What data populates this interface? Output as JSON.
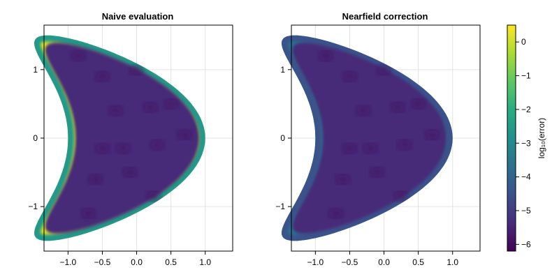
{
  "chart_data": {
    "type": "heatmap",
    "panels": [
      {
        "title": "Naive evaluation",
        "xlim": [
          -1.35,
          1.4
        ],
        "ylim": [
          -1.65,
          1.65
        ],
        "x_ticks": [
          -1.0,
          -0.5,
          0.0,
          0.5,
          1.0
        ],
        "x_tick_labels": [
          "−1.0",
          "−0.5",
          "0.0",
          "0.5",
          "1.0"
        ],
        "y_ticks": [
          -1,
          0,
          1
        ],
        "y_tick_labels": [
          "−1",
          "0",
          "1"
        ],
        "interior_log10_error": -5.4,
        "boundary_log10_error": 0.2,
        "grid": true
      },
      {
        "title": "Nearfield correction",
        "xlim": [
          -1.35,
          1.4
        ],
        "ylim": [
          -1.65,
          1.65
        ],
        "x_ticks": [
          -1.0,
          -0.5,
          0.0,
          0.5,
          1.0
        ],
        "x_tick_labels": [
          "−1.0",
          "−0.5",
          "0.0",
          "0.5",
          "1.0"
        ],
        "y_ticks": [
          -1,
          0,
          1
        ],
        "y_tick_labels": [
          "−1",
          "0",
          "1"
        ],
        "interior_log10_error": -5.4,
        "boundary_log10_error": -3.6,
        "grid": true
      }
    ],
    "colorbar": {
      "label": "log₁₀(error)",
      "colormap": "viridis",
      "range": [
        -6.2,
        0.5
      ],
      "ticks": [
        0,
        -1,
        -2,
        -3,
        -4,
        -5,
        -6
      ],
      "tick_labels": [
        "0",
        "−1",
        "−2",
        "−3",
        "−4",
        "−5",
        "−6"
      ]
    }
  }
}
